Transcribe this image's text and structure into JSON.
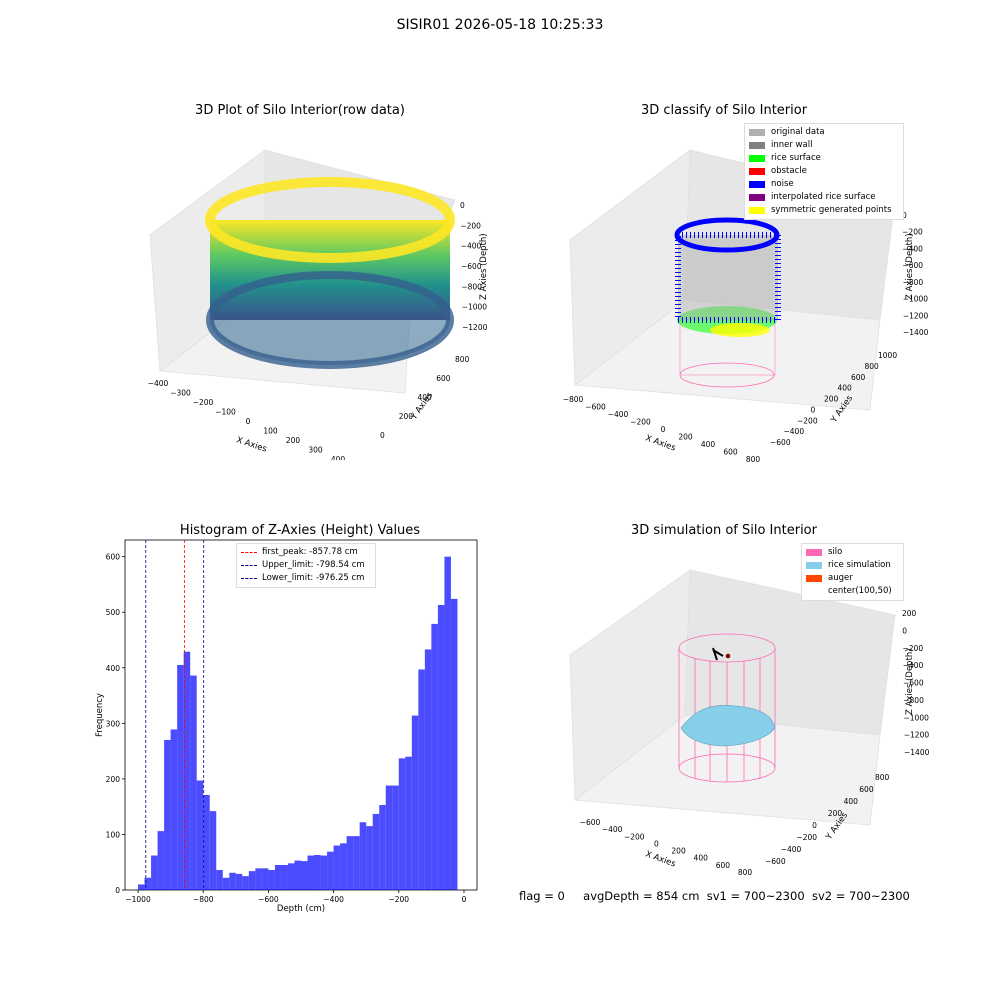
{
  "figure": {
    "suptitle": "SISIR01 2026-05-18 10:25:33",
    "status": {
      "flag": "flag = 0",
      "avg_depth": "avgDepth = 854 cm",
      "sv1": "sv1 = 700~2300",
      "sv2": "sv2 = 700~2300"
    }
  },
  "panels": {
    "raw": {
      "title": "3D Plot of Silo Interior(row data)",
      "xlabel": "X Axies",
      "ylabel": "Y Axies",
      "zlabel": "Z Axies (Depth)",
      "xticks": [
        "-400",
        "-300",
        "-200",
        "-100",
        "0",
        "100",
        "200",
        "300",
        "400"
      ],
      "yticks": [
        "0",
        "200",
        "400",
        "600",
        "800"
      ],
      "zticks": [
        "0",
        "-200",
        "-400",
        "-600",
        "-800",
        "-1000",
        "-1200"
      ],
      "colormap": [
        "#440154",
        "#3b528b",
        "#21918c",
        "#5ec962",
        "#fde725"
      ]
    },
    "classify": {
      "title": "3D classify of Silo Interior",
      "xlabel": "X Axies",
      "ylabel": "Y Axies",
      "zlabel": "Z Axies (Depth)",
      "xticks": [
        "-800",
        "-600",
        "-400",
        "-200",
        "0",
        "200",
        "400",
        "600",
        "800"
      ],
      "yticks": [
        "-600",
        "-400",
        "-200",
        "0",
        "200",
        "400",
        "600",
        "800",
        "1000"
      ],
      "zticks": [
        "0",
        "-200",
        "-400",
        "-600",
        "-800",
        "-1000",
        "-1200",
        "-1400"
      ],
      "legend": [
        {
          "label": "original data",
          "color": "#b0b0b0"
        },
        {
          "label": "inner wall",
          "color": "#808080"
        },
        {
          "label": "rice surface",
          "color": "#00ff00"
        },
        {
          "label": "obstacle",
          "color": "#ff0000"
        },
        {
          "label": "noise",
          "color": "#0000ff"
        },
        {
          "label": "interpolated rice surface",
          "color": "#800080"
        },
        {
          "label": "symmetric generated points",
          "color": "#ffff00"
        }
      ]
    },
    "simulation": {
      "title": "3D simulation of Silo Interior",
      "xlabel": "X Axies",
      "ylabel": "Y Axies",
      "zlabel": "Z Axies (Depth)",
      "xticks": [
        "-600",
        "-400",
        "-200",
        "0",
        "200",
        "400",
        "600",
        "800"
      ],
      "yticks": [
        "-600",
        "-400",
        "-200",
        "0",
        "200",
        "400",
        "600",
        "800"
      ],
      "zticks": [
        "200",
        "0",
        "-200",
        "-400",
        "-600",
        "-800",
        "-1000",
        "-1200",
        "-1400"
      ],
      "legend": [
        {
          "label": "silo",
          "color": "#ff69b4"
        },
        {
          "label": "rice simulation",
          "color": "#87ceeb"
        },
        {
          "label": "auger",
          "color": "#ff4500"
        },
        {
          "label": "center(100,50)",
          "color": ""
        }
      ]
    }
  },
  "chart_data": {
    "type": "bar",
    "title": "Histogram of Z-Axies (Height) Values",
    "xlabel": "Depth (cm)",
    "ylabel": "Frequency",
    "xlim": [
      -1040,
      40
    ],
    "ylim": [
      0,
      630
    ],
    "xticks": [
      -1000,
      -800,
      -600,
      -400,
      -200,
      0
    ],
    "yticks": [
      0,
      100,
      200,
      300,
      400,
      500,
      600
    ],
    "bar_color": "#0000ff",
    "bin_width": 20,
    "bins": [
      {
        "x": -1000,
        "value": 10
      },
      {
        "x": -980,
        "value": 22
      },
      {
        "x": -960,
        "value": 62
      },
      {
        "x": -940,
        "value": 106
      },
      {
        "x": -920,
        "value": 270
      },
      {
        "x": -900,
        "value": 289
      },
      {
        "x": -880,
        "value": 405
      },
      {
        "x": -860,
        "value": 429
      },
      {
        "x": -840,
        "value": 386
      },
      {
        "x": -820,
        "value": 197
      },
      {
        "x": -800,
        "value": 171
      },
      {
        "x": -780,
        "value": 142
      },
      {
        "x": -760,
        "value": 36
      },
      {
        "x": -740,
        "value": 22
      },
      {
        "x": -720,
        "value": 31
      },
      {
        "x": -700,
        "value": 29
      },
      {
        "x": -680,
        "value": 25
      },
      {
        "x": -660,
        "value": 34
      },
      {
        "x": -640,
        "value": 39
      },
      {
        "x": -620,
        "value": 39
      },
      {
        "x": -600,
        "value": 36
      },
      {
        "x": -580,
        "value": 45
      },
      {
        "x": -560,
        "value": 45
      },
      {
        "x": -540,
        "value": 48
      },
      {
        "x": -520,
        "value": 53
      },
      {
        "x": -500,
        "value": 52
      },
      {
        "x": -480,
        "value": 62
      },
      {
        "x": -460,
        "value": 63
      },
      {
        "x": -440,
        "value": 62
      },
      {
        "x": -420,
        "value": 69
      },
      {
        "x": -400,
        "value": 80
      },
      {
        "x": -380,
        "value": 84
      },
      {
        "x": -360,
        "value": 97
      },
      {
        "x": -340,
        "value": 97
      },
      {
        "x": -320,
        "value": 122
      },
      {
        "x": -300,
        "value": 115
      },
      {
        "x": -280,
        "value": 137
      },
      {
        "x": -260,
        "value": 153
      },
      {
        "x": -240,
        "value": 188
      },
      {
        "x": -220,
        "value": 188
      },
      {
        "x": -200,
        "value": 237
      },
      {
        "x": -180,
        "value": 240
      },
      {
        "x": -160,
        "value": 314
      },
      {
        "x": -140,
        "value": 397
      },
      {
        "x": -120,
        "value": 433
      },
      {
        "x": -100,
        "value": 479
      },
      {
        "x": -80,
        "value": 513
      },
      {
        "x": -60,
        "value": 600
      },
      {
        "x": -40,
        "value": 524
      }
    ],
    "vlines": [
      {
        "label": "first_peak: -857.78 cm",
        "x": -857.78,
        "color": "#ff0000"
      },
      {
        "label": "Upper_limit: -798.54 cm",
        "x": -798.54,
        "color": "#00008b"
      },
      {
        "label": "Lower_limit: -976.25 cm",
        "x": -976.25,
        "color": "#00008b"
      }
    ]
  }
}
